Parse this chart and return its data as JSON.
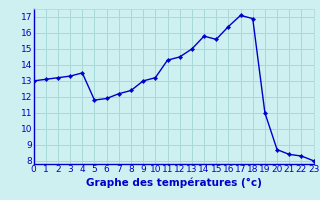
{
  "hours": [
    0,
    1,
    2,
    3,
    4,
    5,
    6,
    7,
    8,
    9,
    10,
    11,
    12,
    13,
    14,
    15,
    16,
    17,
    18,
    19,
    20,
    21,
    22,
    23
  ],
  "temps": [
    13.0,
    13.1,
    13.2,
    13.3,
    13.5,
    11.8,
    11.9,
    12.2,
    12.4,
    13.0,
    13.2,
    14.3,
    14.5,
    15.0,
    15.8,
    15.6,
    16.4,
    17.1,
    16.9,
    11.0,
    8.7,
    8.4,
    8.3,
    8.0
  ],
  "xlabel": "Graphe des températures (°c)",
  "bg_color": "#cff0f0",
  "grid_color": "#a8d8d8",
  "line_color": "#0000cc",
  "marker_color": "#0000cc",
  "axis_label_color": "#0000cc",
  "axis_bg_color": "#3030b0",
  "ylim": [
    7.8,
    17.5
  ],
  "yticks": [
    8,
    9,
    10,
    11,
    12,
    13,
    14,
    15,
    16,
    17
  ],
  "xlim": [
    0,
    23
  ],
  "xticks": [
    0,
    1,
    2,
    3,
    4,
    5,
    6,
    7,
    8,
    9,
    10,
    11,
    12,
    13,
    14,
    15,
    16,
    17,
    18,
    19,
    20,
    21,
    22,
    23
  ],
  "tick_fontsize": 6.5,
  "xlabel_fontsize": 7.5
}
